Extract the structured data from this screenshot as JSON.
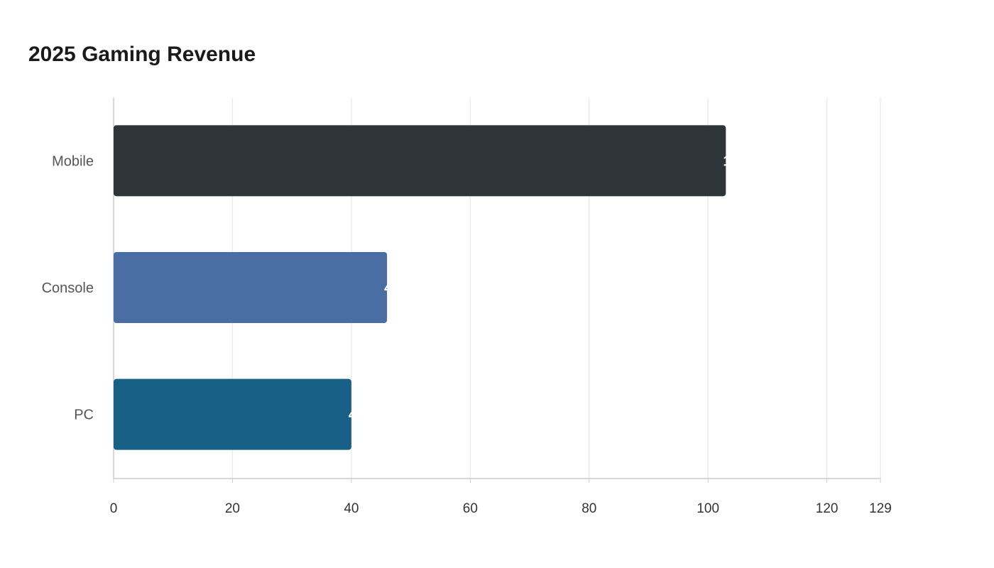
{
  "chart_data": {
    "type": "bar",
    "orientation": "horizontal",
    "title": "2025 Gaming Revenue",
    "categories": [
      "Mobile",
      "Console",
      "PC"
    ],
    "values": [
      103,
      46,
      40
    ],
    "colors": [
      "#2e3538",
      "#4a6ea3",
      "#186086"
    ],
    "xlim": [
      0,
      129
    ],
    "xticks": [
      0,
      20,
      40,
      60,
      80,
      100,
      120,
      129
    ],
    "grid": true,
    "xlabel": "",
    "ylabel": ""
  }
}
